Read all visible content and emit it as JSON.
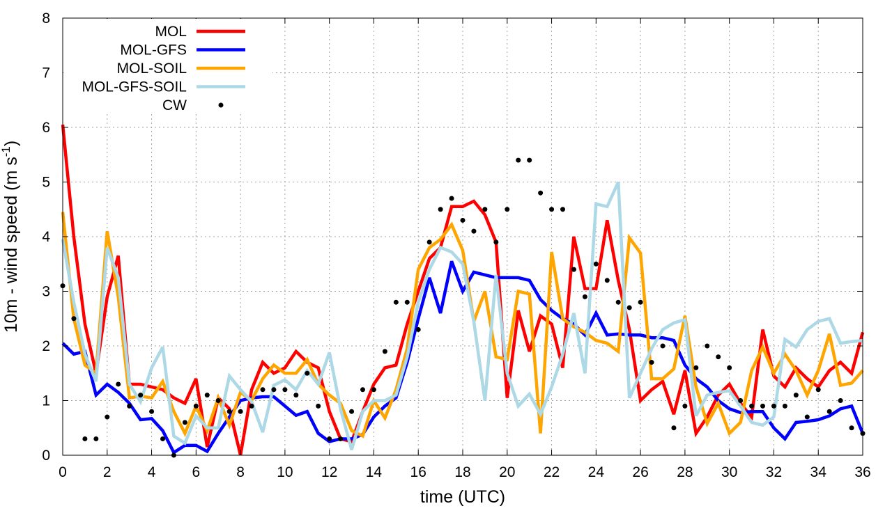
{
  "chart_data": {
    "type": "line",
    "xlabel": "time (UTC)",
    "ylabel_parts": {
      "main": "10m - wind speed  (m s",
      "sup": "-1",
      "close": ")"
    },
    "xlim": [
      0,
      36
    ],
    "ylim": [
      0,
      8
    ],
    "xticks": [
      0,
      2,
      4,
      6,
      8,
      10,
      12,
      14,
      16,
      18,
      20,
      22,
      24,
      26,
      28,
      30,
      32,
      34,
      36
    ],
    "yticks": [
      0,
      1,
      2,
      3,
      4,
      5,
      6,
      7,
      8
    ],
    "grid": true,
    "legend_position": "top-left",
    "series": [
      {
        "name": "MOL",
        "color": "#ff0000",
        "x": [
          0,
          0.5,
          1,
          1.5,
          2,
          2.5,
          3,
          3.5,
          4,
          4.5,
          5,
          5.5,
          6,
          6.5,
          7,
          7.5,
          8,
          8.5,
          9,
          9.5,
          10,
          10.5,
          11,
          11.5,
          12,
          12.5,
          13,
          13.5,
          14,
          14.5,
          15,
          15.5,
          16,
          16.5,
          17,
          17.5,
          18,
          18.5,
          19,
          19.5,
          20,
          20.5,
          21,
          21.5,
          22,
          22.5,
          23,
          23.5,
          24,
          24.5,
          25,
          25.5,
          26,
          26.5,
          27,
          27.5,
          28,
          28.5,
          29,
          29.5,
          30,
          30.5,
          31,
          31.5,
          32,
          32.5,
          33,
          33.5,
          34,
          34.5,
          35,
          35.5,
          36
        ],
        "values": [
          6.05,
          4.0,
          2.4,
          1.5,
          2.9,
          3.65,
          1.3,
          1.3,
          1.25,
          1.2,
          1.05,
          0.95,
          1.4,
          0.15,
          1.05,
          0.85,
          0.0,
          1.2,
          1.7,
          1.5,
          1.6,
          1.9,
          1.7,
          1.6,
          0.8,
          0.3,
          0.25,
          0.8,
          1.3,
          1.6,
          1.65,
          2.4,
          3.0,
          3.6,
          3.8,
          4.55,
          4.55,
          4.65,
          4.4,
          3.9,
          1.05,
          2.65,
          1.9,
          2.55,
          2.4,
          1.6,
          4.0,
          3.05,
          3.05,
          4.3,
          3.2,
          2.3,
          1.0,
          1.2,
          1.35,
          0.75,
          1.55,
          0.4,
          0.7,
          1.1,
          1.3,
          0.95,
          0.7,
          2.3,
          1.45,
          1.25,
          1.6,
          1.4,
          1.25,
          1.55,
          1.7,
          1.5,
          2.25
        ]
      },
      {
        "name": "MOL-GFS",
        "color": "#0000ff",
        "x": [
          0,
          0.5,
          1,
          1.5,
          2,
          2.5,
          3,
          3.5,
          4,
          4.5,
          5,
          5.5,
          6,
          6.5,
          7,
          7.5,
          8,
          8.5,
          9,
          9.5,
          10,
          10.5,
          11,
          11.5,
          12,
          12.5,
          13,
          13.5,
          14,
          14.5,
          15,
          15.5,
          16,
          16.5,
          17,
          17.5,
          18,
          18.5,
          19,
          19.5,
          20,
          20.5,
          21,
          21.5,
          22,
          22.5,
          23,
          23.5,
          24,
          24.5,
          25,
          25.5,
          26,
          26.5,
          27,
          27.5,
          28,
          28.5,
          29,
          29.5,
          30,
          30.5,
          31,
          31.5,
          32,
          32.5,
          33,
          33.5,
          34,
          34.5,
          35,
          35.5,
          36
        ],
        "values": [
          2.05,
          1.85,
          1.9,
          1.1,
          1.3,
          1.15,
          0.95,
          0.65,
          0.67,
          0.45,
          0.05,
          0.18,
          0.18,
          0.07,
          0.4,
          0.7,
          1.0,
          1.05,
          1.07,
          1.07,
          0.9,
          0.73,
          0.8,
          0.4,
          0.25,
          0.3,
          0.3,
          0.38,
          0.7,
          0.9,
          1.05,
          1.7,
          2.5,
          3.25,
          2.6,
          3.55,
          3.0,
          3.35,
          3.3,
          3.25,
          3.25,
          3.25,
          3.2,
          2.85,
          2.65,
          2.5,
          2.4,
          2.2,
          2.6,
          2.2,
          2.22,
          2.2,
          2.2,
          2.15,
          2.15,
          2.1,
          1.65,
          1.4,
          1.25,
          1.0,
          0.85,
          0.78,
          0.8,
          0.8,
          0.5,
          0.3,
          0.6,
          0.62,
          0.65,
          0.72,
          0.85,
          0.9,
          0.4
        ]
      },
      {
        "name": "MOL-SOIL",
        "color": "#ffa500",
        "x": [
          0,
          0.5,
          1,
          1.5,
          2,
          2.5,
          3,
          3.5,
          4,
          4.5,
          5,
          5.5,
          6,
          6.5,
          7,
          7.5,
          8,
          8.5,
          9,
          9.5,
          10,
          10.5,
          11,
          11.5,
          12,
          12.5,
          13,
          13.5,
          14,
          14.5,
          15,
          15.5,
          16,
          16.5,
          17,
          17.5,
          18,
          18.5,
          19,
          19.5,
          20,
          20.5,
          21,
          21.5,
          22,
          22.5,
          23,
          23.5,
          24,
          24.5,
          25,
          25.5,
          26,
          26.5,
          27,
          27.5,
          28,
          28.5,
          29,
          29.5,
          30,
          30.5,
          31,
          31.5,
          32,
          32.5,
          33,
          33.5,
          34,
          34.5,
          35,
          35.5,
          36
        ],
        "values": [
          4.45,
          2.5,
          1.65,
          1.5,
          4.1,
          2.9,
          1.05,
          1.08,
          1.05,
          1.35,
          0.8,
          0.4,
          0.9,
          0.45,
          1.05,
          0.55,
          1.15,
          1.0,
          1.4,
          1.65,
          1.5,
          1.5,
          1.75,
          1.3,
          1.1,
          0.95,
          0.45,
          0.35,
          1.0,
          0.68,
          1.2,
          1.95,
          3.4,
          3.8,
          3.95,
          4.22,
          3.75,
          2.45,
          3.0,
          1.8,
          1.75,
          3.0,
          2.95,
          0.4,
          3.72,
          2.5,
          2.35,
          2.25,
          2.1,
          2.05,
          1.9,
          3.98,
          3.7,
          1.4,
          1.4,
          1.58,
          2.55,
          1.25,
          0.58,
          0.95,
          0.4,
          0.6,
          1.55,
          1.98,
          1.5,
          1.85,
          1.55,
          1.1,
          1.55,
          2.22,
          1.28,
          1.32,
          1.55
        ]
      },
      {
        "name": "MOL-GFS-SOIL",
        "color": "#add8e6",
        "x": [
          0,
          0.5,
          1,
          1.5,
          2,
          2.5,
          3,
          3.5,
          4,
          4.5,
          5,
          5.5,
          6,
          6.5,
          7,
          7.5,
          8,
          8.5,
          9,
          9.5,
          10,
          10.5,
          11,
          11.5,
          12,
          12.5,
          13,
          13.5,
          14,
          14.5,
          15,
          15.5,
          16,
          16.5,
          17,
          17.5,
          18,
          18.5,
          19,
          19.5,
          20,
          20.5,
          21,
          21.5,
          22,
          22.5,
          23,
          23.5,
          24,
          24.5,
          25,
          25.5,
          26,
          26.5,
          27,
          27.5,
          28,
          28.5,
          29,
          29.5,
          30,
          30.5,
          31,
          31.5,
          32,
          32.5,
          33,
          33.5,
          34,
          34.5,
          35,
          35.5,
          36
        ],
        "values": [
          3.95,
          2.8,
          1.85,
          1.35,
          3.8,
          3.25,
          1.3,
          0.98,
          1.6,
          1.98,
          0.35,
          0.22,
          0.72,
          0.5,
          0.5,
          1.45,
          1.2,
          0.98,
          0.42,
          1.28,
          1.38,
          1.2,
          1.55,
          1.3,
          1.88,
          0.85,
          0.1,
          0.8,
          1.0,
          1.0,
          1.1,
          1.8,
          2.8,
          3.4,
          3.8,
          3.72,
          3.5,
          2.45,
          1.0,
          3.3,
          1.5,
          0.9,
          1.12,
          0.75,
          1.25,
          1.85,
          2.6,
          1.5,
          4.6,
          4.55,
          5.0,
          1.05,
          1.5,
          1.95,
          2.3,
          2.42,
          2.48,
          0.72,
          1.1,
          1.15,
          1.18,
          0.9,
          0.6,
          0.55,
          0.7,
          2.12,
          1.98,
          2.3,
          2.45,
          2.5,
          2.05,
          2.08,
          2.1
        ]
      }
    ],
    "scatter": {
      "name": "CW",
      "color": "#000000",
      "x": [
        0,
        0.5,
        1,
        1.5,
        2,
        2.5,
        3,
        3.5,
        4,
        4.5,
        5,
        5.5,
        6,
        6.5,
        7,
        7.5,
        8,
        8.5,
        9,
        9.5,
        10,
        10.5,
        11,
        11.5,
        12,
        12.5,
        13,
        13.5,
        14,
        14.5,
        15,
        15.5,
        16,
        16.5,
        17,
        17.5,
        18,
        18.5,
        19,
        19.5,
        20,
        20.5,
        21,
        21.5,
        22,
        22.5,
        23,
        23.5,
        24,
        24.5,
        25,
        25.5,
        26,
        26.5,
        27,
        27.5,
        28,
        28.5,
        29,
        29.5,
        30,
        30.5,
        31,
        31.5,
        32,
        32.5,
        33,
        33.5,
        34,
        34.5,
        35,
        35.5,
        36
      ],
      "values": [
        3.1,
        2.5,
        0.3,
        0.3,
        0.7,
        1.3,
        0.9,
        1.1,
        0.8,
        0.3,
        0.0,
        0.6,
        0.9,
        1.1,
        1.0,
        0.8,
        0.8,
        0.9,
        1.2,
        1.2,
        1.2,
        1.1,
        1.5,
        0.9,
        0.3,
        0.3,
        0.8,
        1.2,
        1.2,
        1.9,
        2.8,
        2.8,
        2.3,
        3.9,
        4.5,
        4.7,
        4.3,
        4.1,
        4.5,
        3.9,
        4.5,
        5.4,
        5.4,
        4.8,
        4.5,
        4.5,
        3.4,
        2.9,
        3.5,
        3.2,
        2.8,
        2.7,
        2.8,
        1.7,
        2.0,
        0.5,
        0.9,
        1.6,
        2.0,
        1.8,
        1.6,
        1.0,
        0.9,
        0.9,
        0.9,
        0.9,
        1.1,
        0.7,
        1.2,
        0.8,
        1.0,
        0.5,
        0.4
      ]
    }
  }
}
